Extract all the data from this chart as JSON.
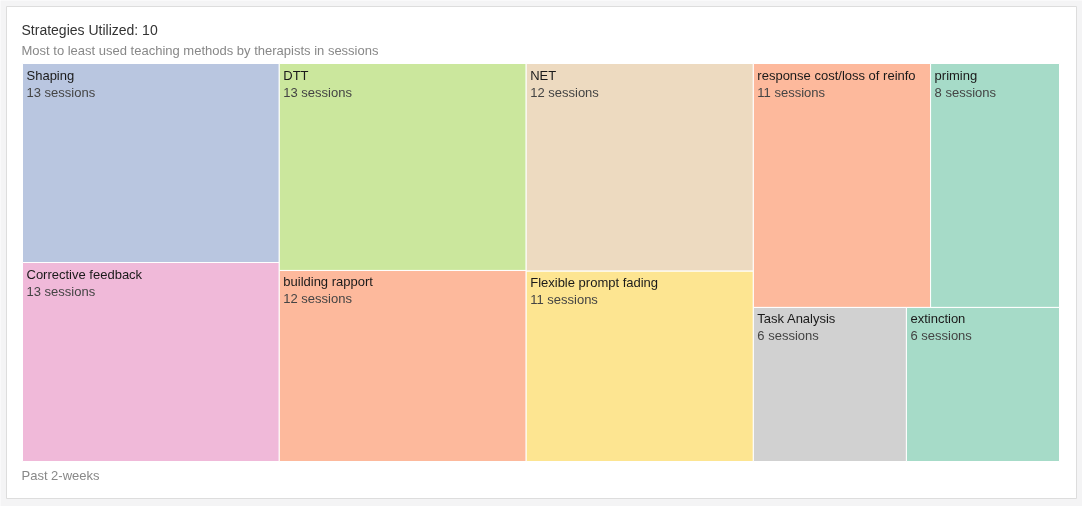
{
  "chart_data": {
    "type": "other",
    "title": "Strategies Utilized: 10",
    "subtitle": "Most to least used teaching methods by therapists in sessions",
    "categories": [
      "Shaping",
      "Corrective feedback",
      "DTT",
      "building rapport",
      "NET",
      "Flexible prompt fading",
      "response cost/loss of reinfo",
      "priming",
      "Task Analysis",
      "extinction"
    ],
    "values": [
      13,
      13,
      13,
      12,
      12,
      11,
      11,
      8,
      6,
      6
    ],
    "value_labels": [
      "13 sessions",
      "13 sessions",
      "13 sessions",
      "12 sessions",
      "12 sessions",
      "11 sessions",
      "11 sessions",
      "8 sessions",
      "6 sessions",
      "6 sessions"
    ],
    "colors": [
      "#b9c6e0",
      "#f0b9d9",
      "#cbe79d",
      "#fdb99c",
      "#eddac0",
      "#fde591",
      "#fdb99c",
      "#a6dbc8",
      "#d1d1d1",
      "#a6dbc8"
    ],
    "annotations": [
      "Past 2-weeks"
    ]
  }
}
